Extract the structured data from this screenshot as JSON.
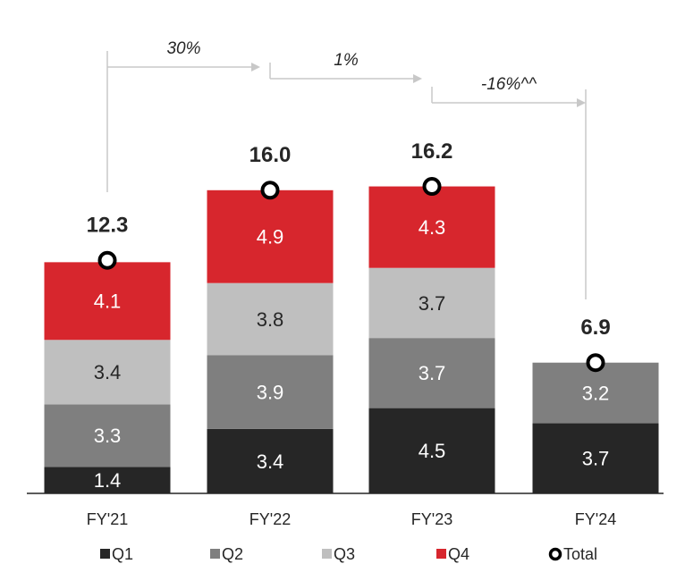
{
  "chart_data": {
    "type": "stacked_bar",
    "categories": [
      "FY'21",
      "FY'22",
      "FY'23",
      "FY'24"
    ],
    "series": [
      {
        "name": "Q1",
        "color": "#262626",
        "label_color": "#ffffff",
        "values": [
          1.4,
          3.4,
          4.5,
          3.7
        ]
      },
      {
        "name": "Q2",
        "color": "#7f7f7f",
        "label_color": "#ffffff",
        "values": [
          3.3,
          3.9,
          3.7,
          3.2
        ]
      },
      {
        "name": "Q3",
        "color": "#bfbfbf",
        "label_color": "#262626",
        "values": [
          3.4,
          3.8,
          3.7,
          null
        ]
      },
      {
        "name": "Q4",
        "color": "#d7262d",
        "label_color": "#ffffff",
        "values": [
          4.1,
          4.9,
          4.3,
          null
        ]
      }
    ],
    "totals": {
      "name": "Total",
      "values": [
        12.3,
        16.0,
        16.2,
        6.9
      ],
      "value_labels": [
        "12.3",
        "16.0",
        "16.2",
        "6.9"
      ]
    },
    "annotations": [
      "30%",
      "1%",
      "-16%^^"
    ]
  }
}
